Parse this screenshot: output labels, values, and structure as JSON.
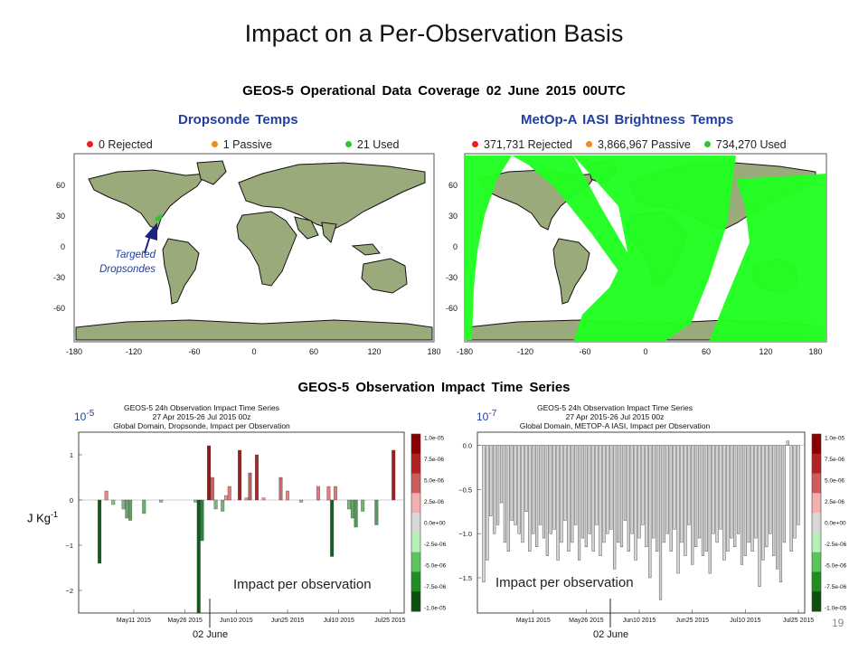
{
  "slide": {
    "title": "Impact on a Per-Observation Basis",
    "subtitle": "GEOS-5 Operational Data Coverage  02 June 2015 00UTC",
    "ts_title": "GEOS-5 Observation Impact Time Series",
    "page_number": "19",
    "units_label": "J Kg",
    "units_exponent": "-1"
  },
  "maps": [
    {
      "title": "Dropsonde Temps",
      "legend": [
        {
          "label": "0 Rejected",
          "color": "#e0241b"
        },
        {
          "label": "1 Passive",
          "color": "#f08a24"
        },
        {
          "label": "21 Used",
          "color": "#2fc52f"
        }
      ],
      "annotation": "Targeted Dropsondes",
      "lon_ticks": [
        "-180",
        "-120",
        "-60",
        "0",
        "60",
        "120",
        "180"
      ],
      "lat_ticks": [
        "60",
        "30",
        "0",
        "-30",
        "-60"
      ]
    },
    {
      "title": "MetOp-A IASI Brightness Temps",
      "legend": [
        {
          "label": "371,731 Rejected",
          "color": "#e0241b"
        },
        {
          "label": "3,866,967 Passive",
          "color": "#f08a24"
        },
        {
          "label": "734,270 Used",
          "color": "#2fc52f"
        }
      ],
      "lon_ticks": [
        "-180",
        "-120",
        "-60",
        "0",
        "60",
        "120",
        "180"
      ],
      "lat_ticks": [
        "60",
        "30",
        "0",
        "-30",
        "-60"
      ]
    }
  ],
  "chart_data": [
    {
      "type": "bar",
      "title": "GEOS-5 24h Observation Impact Time Series",
      "subtitle1": "27 Apr 2015-26 Jul 2015 00z",
      "subtitle2": "Global Domain, Dropsonde, Impact per Observation",
      "scale_label": "10",
      "scale_exponent": "-5",
      "ylim": [
        -2.5,
        1.5
      ],
      "yticks": [
        "1",
        "0",
        "−1",
        "−2"
      ],
      "ytick_values": [
        1,
        0,
        -1,
        -2
      ],
      "xticks": [
        "May11 2015",
        "May26 2015",
        "Jun10 2015",
        "Jun25 2015",
        "Jul10 2015",
        "Jul25 2015"
      ],
      "xtick_days": [
        14,
        29,
        44,
        59,
        74,
        89
      ],
      "colorbar_ticks": [
        "1.0e-05",
        "7.5e-06",
        "5.0e-06",
        "2.5e-06",
        "0.0e+00",
        "-2.5e-06",
        "-5.0e-06",
        "-7.5e-06",
        "-1.0e-05"
      ],
      "days_since_apr27": [
        4,
        6,
        8,
        11,
        12,
        13,
        17,
        22,
        32,
        33,
        34,
        36,
        37,
        38,
        40,
        41,
        42,
        45,
        47,
        48,
        50,
        52,
        57,
        59,
        63,
        68,
        71,
        72,
        73,
        77,
        78,
        79,
        81,
        85,
        90
      ],
      "values": [
        -1.4,
        0.2,
        -0.1,
        -0.2,
        -0.4,
        -0.45,
        -0.3,
        -0.05,
        -0.05,
        -2.5,
        -0.9,
        1.2,
        0.5,
        -0.2,
        -0.25,
        0.1,
        0.3,
        1.1,
        0.05,
        0.6,
        1.0,
        0.05,
        0.5,
        0.2,
        -0.05,
        0.3,
        0.3,
        -1.25,
        0.3,
        -0.2,
        -0.4,
        -0.6,
        -0.25,
        -0.55,
        1.1
      ],
      "annotation": "Impact per observation",
      "marker_label": "02 June",
      "marker_day": 36
    },
    {
      "type": "bar",
      "title": "GEOS-5 24h Observation Impact Time Series",
      "subtitle1": "27 Apr 2015-26 Jul 2015 00z",
      "subtitle2": "Global Domain, METOP-A IASI, Impact per Observation",
      "scale_label": "10",
      "scale_exponent": "-7",
      "ylim": [
        -1.9,
        0.15
      ],
      "yticks": [
        "0.0",
        "−0.5",
        "−1.0",
        "−1.5"
      ],
      "ytick_values": [
        0,
        -0.5,
        -1.0,
        -1.5
      ],
      "xticks": [
        "May11 2015",
        "May26 2015",
        "Jun10 2015",
        "Jun25 2015",
        "Jul10 2015",
        "Jul25 2015"
      ],
      "xtick_days": [
        14,
        29,
        44,
        59,
        74,
        89
      ],
      "colorbar_ticks": [
        "1.0e-05",
        "7.5e-06",
        "5.0e-06",
        "2.5e-06",
        "0.0e+00",
        "-2.5e-06",
        "-5.0e-06",
        "-7.5e-06",
        "-1.0e-05"
      ],
      "values": [
        -1.55,
        -1.3,
        -0.8,
        -1.0,
        -0.9,
        -0.65,
        -1.1,
        -1.2,
        -0.85,
        -0.9,
        -1.0,
        -1.1,
        -0.75,
        -1.2,
        -1.0,
        -1.15,
        -0.9,
        -1.05,
        -1.25,
        -1.0,
        -0.95,
        -1.3,
        -1.1,
        -0.85,
        -1.2,
        -1.1,
        -0.9,
        -1.3,
        -1.05,
        -1.15,
        -1.0,
        -1.2,
        -0.9,
        -1.25,
        -1.1,
        -1.0,
        -0.95,
        -1.4,
        -1.1,
        -1.15,
        -0.85,
        -1.2,
        -1.0,
        -1.3,
        -1.05,
        -0.9,
        -1.15,
        -1.5,
        -1.05,
        -1.2,
        -1.75,
        -1.1,
        -1.0,
        -1.2,
        -0.95,
        -1.45,
        -1.1,
        -1.25,
        -0.9,
        -1.35,
        -1.15,
        -1.05,
        -1.25,
        -1.2,
        -1.45,
        -1.0,
        -1.1,
        -0.95,
        -1.3,
        -1.2,
        -1.05,
        -1.15,
        -1.0,
        -1.35,
        -1.25,
        -1.1,
        -1.2,
        -1.05,
        -1.6,
        -1.3,
        -1.15,
        -1.0,
        -1.25,
        -1.4,
        -1.55,
        -1.1,
        0.05,
        -1.2,
        -1.05,
        -0.9
      ],
      "annotation": "Impact per observation",
      "marker_label": "02 June",
      "marker_index": 36
    }
  ]
}
